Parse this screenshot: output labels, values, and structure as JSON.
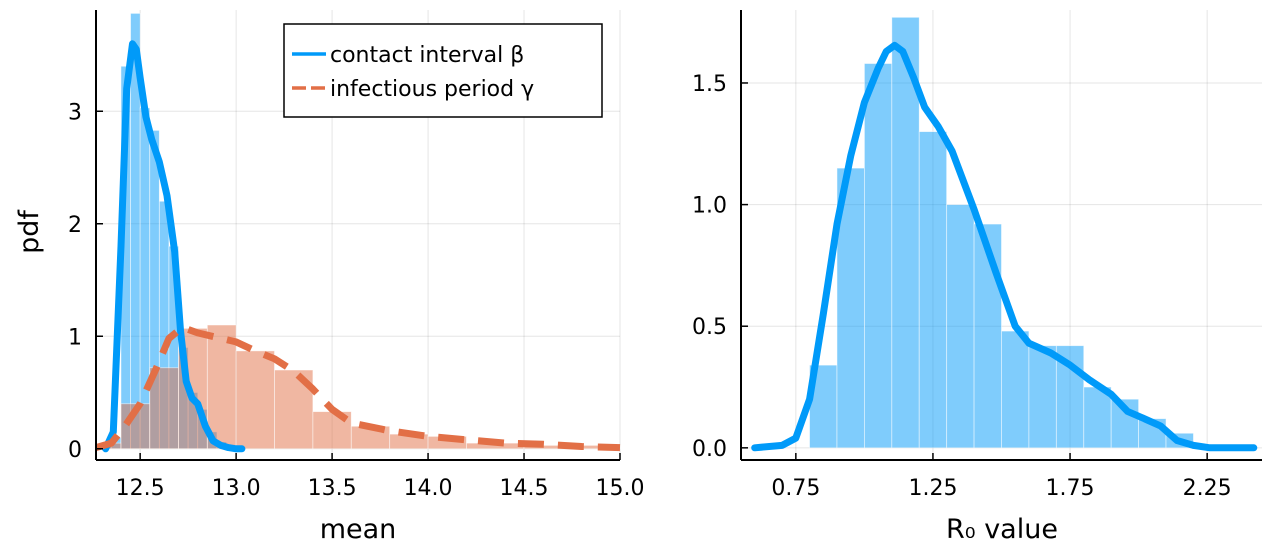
{
  "chart_data": [
    {
      "type": "histogram",
      "xlabel": "mean",
      "ylabel": "pdf",
      "xlim": [
        12.27,
        15.0
      ],
      "ylim": [
        -0.1,
        3.9
      ],
      "xticks": [
        "12.5",
        "13.0",
        "13.5",
        "14.0",
        "14.5",
        "15.0"
      ],
      "yticks": [
        "0",
        "1",
        "2",
        "3"
      ],
      "grid": true,
      "legend": "top-right",
      "series": [
        {
          "name": "contact interval β",
          "color": "#009af9",
          "line_style": "solid",
          "bins": [
            {
              "x0": 12.3,
              "x1": 12.35,
              "y": 0.03
            },
            {
              "x0": 12.35,
              "x1": 12.4,
              "y": 0.1
            },
            {
              "x0": 12.4,
              "x1": 12.45,
              "y": 3.4
            },
            {
              "x0": 12.45,
              "x1": 12.5,
              "y": 3.87
            },
            {
              "x0": 12.5,
              "x1": 12.55,
              "y": 3.03
            },
            {
              "x0": 12.55,
              "x1": 12.6,
              "y": 2.83
            },
            {
              "x0": 12.6,
              "x1": 12.65,
              "y": 2.2
            },
            {
              "x0": 12.65,
              "x1": 12.7,
              "y": 1.8
            },
            {
              "x0": 12.7,
              "x1": 12.75,
              "y": 0.9
            },
            {
              "x0": 12.75,
              "x1": 12.8,
              "y": 0.5
            },
            {
              "x0": 12.8,
              "x1": 12.85,
              "y": 0.35
            },
            {
              "x0": 12.85,
              "x1": 12.9,
              "y": 0.15
            },
            {
              "x0": 12.9,
              "x1": 12.95,
              "y": 0.06
            },
            {
              "x0": 12.95,
              "x1": 13.0,
              "y": 0.03
            }
          ],
          "density": {
            "x": [
              12.32,
              12.36,
              12.4,
              12.43,
              12.46,
              12.48,
              12.5,
              12.53,
              12.56,
              12.6,
              12.64,
              12.68,
              12.71,
              12.74,
              12.77,
              12.8,
              12.84,
              12.88,
              12.92,
              12.96,
              13.0,
              13.03
            ],
            "y": [
              0.0,
              0.15,
              1.8,
              3.2,
              3.6,
              3.55,
              3.3,
              2.95,
              2.75,
              2.55,
              2.25,
              1.75,
              1.05,
              0.6,
              0.45,
              0.4,
              0.2,
              0.07,
              0.03,
              0.01,
              0.0,
              0.0
            ]
          }
        },
        {
          "name": "infectious period γ",
          "color": "#e26f46",
          "line_style": "dash",
          "bins": [
            {
              "x0": 12.3,
              "x1": 12.4,
              "y": 0.05
            },
            {
              "x0": 12.4,
              "x1": 12.55,
              "y": 0.4
            },
            {
              "x0": 12.55,
              "x1": 12.7,
              "y": 0.72
            },
            {
              "x0": 12.7,
              "x1": 12.85,
              "y": 1.07
            },
            {
              "x0": 12.85,
              "x1": 13.0,
              "y": 1.1
            },
            {
              "x0": 13.0,
              "x1": 13.2,
              "y": 0.87
            },
            {
              "x0": 13.2,
              "x1": 13.4,
              "y": 0.7
            },
            {
              "x0": 13.4,
              "x1": 13.6,
              "y": 0.33
            },
            {
              "x0": 13.6,
              "x1": 13.8,
              "y": 0.2
            },
            {
              "x0": 13.8,
              "x1": 14.0,
              "y": 0.13
            },
            {
              "x0": 14.0,
              "x1": 14.2,
              "y": 0.11
            },
            {
              "x0": 14.2,
              "x1": 14.5,
              "y": 0.05
            },
            {
              "x0": 14.5,
              "x1": 15.0,
              "y": 0.03
            }
          ],
          "density": {
            "x": [
              12.27,
              12.35,
              12.42,
              12.5,
              12.58,
              12.65,
              12.72,
              12.8,
              12.9,
              13.0,
              13.1,
              13.2,
              13.3,
              13.4,
              13.5,
              13.6,
              13.8,
              14.0,
              14.2,
              14.4,
              14.6,
              14.8,
              15.0
            ],
            "y": [
              0.01,
              0.05,
              0.2,
              0.4,
              0.7,
              0.98,
              1.08,
              1.03,
              0.99,
              0.95,
              0.87,
              0.8,
              0.69,
              0.53,
              0.35,
              0.23,
              0.16,
              0.11,
              0.08,
              0.05,
              0.04,
              0.02,
              0.01
            ]
          }
        }
      ]
    },
    {
      "type": "histogram",
      "xlabel": "R₀ value",
      "ylabel": "",
      "xlim": [
        0.55,
        2.45
      ],
      "ylim": [
        -0.05,
        1.8
      ],
      "xticks": [
        "0.75",
        "1.25",
        "1.75",
        "2.25"
      ],
      "yticks": [
        "0.0",
        "0.5",
        "1.0",
        "1.5"
      ],
      "grid": true,
      "series": [
        {
          "name": "",
          "color": "#009af9",
          "bins": [
            {
              "x0": 0.8,
              "x1": 0.9,
              "y": 0.34
            },
            {
              "x0": 0.9,
              "x1": 1.0,
              "y": 1.15
            },
            {
              "x0": 1.0,
              "x1": 1.1,
              "y": 1.58
            },
            {
              "x0": 1.1,
              "x1": 1.2,
              "y": 1.77
            },
            {
              "x0": 1.2,
              "x1": 1.3,
              "y": 1.3
            },
            {
              "x0": 1.3,
              "x1": 1.4,
              "y": 1.0
            },
            {
              "x0": 1.4,
              "x1": 1.5,
              "y": 0.92
            },
            {
              "x0": 1.5,
              "x1": 1.6,
              "y": 0.48
            },
            {
              "x0": 1.6,
              "x1": 1.7,
              "y": 0.42
            },
            {
              "x0": 1.7,
              "x1": 1.8,
              "y": 0.42
            },
            {
              "x0": 1.8,
              "x1": 1.9,
              "y": 0.25
            },
            {
              "x0": 1.9,
              "x1": 2.0,
              "y": 0.2
            },
            {
              "x0": 2.0,
              "x1": 2.1,
              "y": 0.12
            },
            {
              "x0": 2.1,
              "x1": 2.2,
              "y": 0.06
            }
          ],
          "density": {
            "x": [
              0.6,
              0.7,
              0.75,
              0.8,
              0.85,
              0.9,
              0.95,
              1.0,
              1.05,
              1.08,
              1.11,
              1.14,
              1.18,
              1.22,
              1.27,
              1.32,
              1.4,
              1.48,
              1.55,
              1.6,
              1.68,
              1.75,
              1.82,
              1.9,
              1.96,
              2.02,
              2.08,
              2.14,
              2.2,
              2.26,
              2.35,
              2.42
            ],
            "y": [
              0.0,
              0.01,
              0.04,
              0.2,
              0.55,
              0.92,
              1.2,
              1.42,
              1.56,
              1.63,
              1.655,
              1.63,
              1.52,
              1.4,
              1.32,
              1.22,
              0.98,
              0.72,
              0.5,
              0.43,
              0.39,
              0.34,
              0.28,
              0.22,
              0.15,
              0.12,
              0.09,
              0.03,
              0.01,
              0.0,
              0.0,
              0.0
            ]
          }
        }
      ]
    }
  ]
}
